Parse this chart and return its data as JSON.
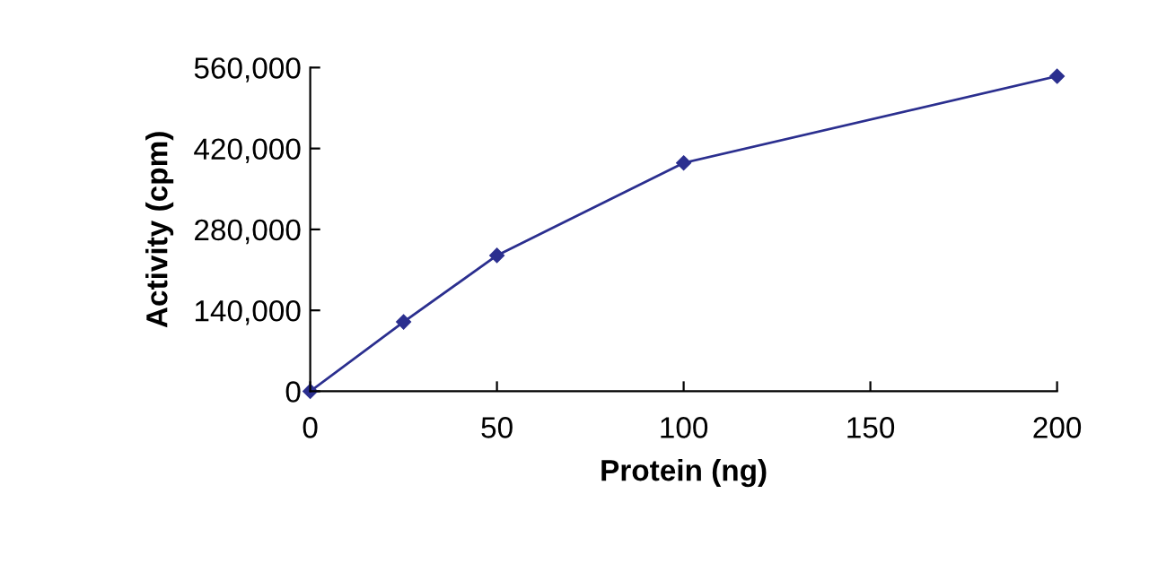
{
  "chart_data": {
    "type": "line",
    "xlabel": "Protein (ng)",
    "ylabel": "Activity (cpm)",
    "x": [
      0,
      25,
      50,
      100,
      200
    ],
    "series": [
      {
        "color": "#2b2f8f",
        "values": [
          0,
          120000,
          235000,
          395000,
          545000
        ]
      }
    ],
    "xlim": [
      0,
      200
    ],
    "xticks": [
      0,
      50,
      100,
      150,
      200
    ],
    "ylim": [
      0,
      560000
    ],
    "yticks": [
      {
        "value": 0,
        "label": "0"
      },
      {
        "value": 140000,
        "label": "140,000"
      },
      {
        "value": 280000,
        "label": "280,000"
      },
      {
        "value": 420000,
        "label": "420,000"
      },
      {
        "value": 560000,
        "label": "560,000"
      }
    ],
    "marker": "diamond",
    "line_style": "solid",
    "grid": false,
    "legend": false
  }
}
